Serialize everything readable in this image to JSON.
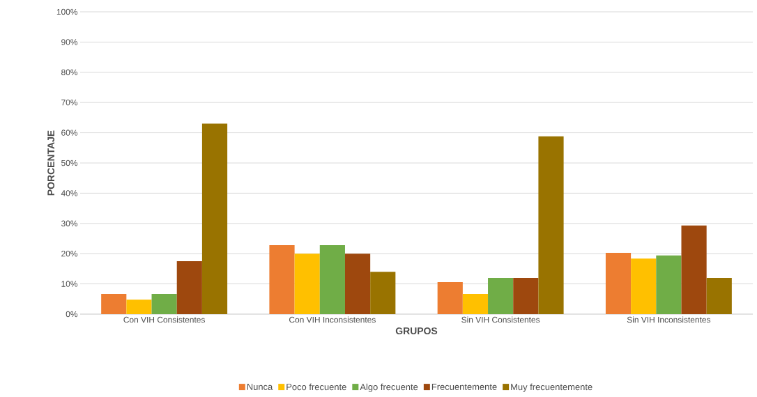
{
  "chart_data": {
    "type": "bar",
    "xlabel": "GRUPOS",
    "ylabel": "PORCENTAJE",
    "categories": [
      "Con VIH Consistentes",
      "Con VIH Inconsistentes",
      "Sin VIH Consistentes",
      "Sin VIH Inconsistentes"
    ],
    "series": [
      {
        "name": "Nunca",
        "color": "#ed7d31",
        "values": [
          6.7,
          22.8,
          10.6,
          20.3
        ]
      },
      {
        "name": "Poco frecuente",
        "color": "#ffc000",
        "values": [
          4.8,
          20,
          6.7,
          18.4
        ]
      },
      {
        "name": "Algo frecuente",
        "color": "#70ad47",
        "values": [
          6.7,
          22.8,
          12,
          19.4
        ]
      },
      {
        "name": "Frecuentemente",
        "color": "#9e480e",
        "values": [
          17.5,
          20,
          12,
          29.3
        ]
      },
      {
        "name": "Muy frecuentemente",
        "color": "#997300",
        "values": [
          63,
          14,
          58.8,
          12
        ]
      }
    ],
    "ylim": [
      0,
      100
    ],
    "yticks": [
      {
        "value": 0,
        "label": "0%"
      },
      {
        "value": 10,
        "label": "10%"
      },
      {
        "value": 20,
        "label": "20%"
      },
      {
        "value": 30,
        "label": "30%"
      },
      {
        "value": 40,
        "label": "40%"
      },
      {
        "value": 50,
        "label": "50%"
      },
      {
        "value": 60,
        "label": "60%"
      },
      {
        "value": 70,
        "label": "70%"
      },
      {
        "value": 80,
        "label": "80%"
      },
      {
        "value": 90,
        "label": "90%"
      },
      {
        "value": 100,
        "label": "100%"
      }
    ],
    "grid": "y",
    "legend": "bottom"
  }
}
